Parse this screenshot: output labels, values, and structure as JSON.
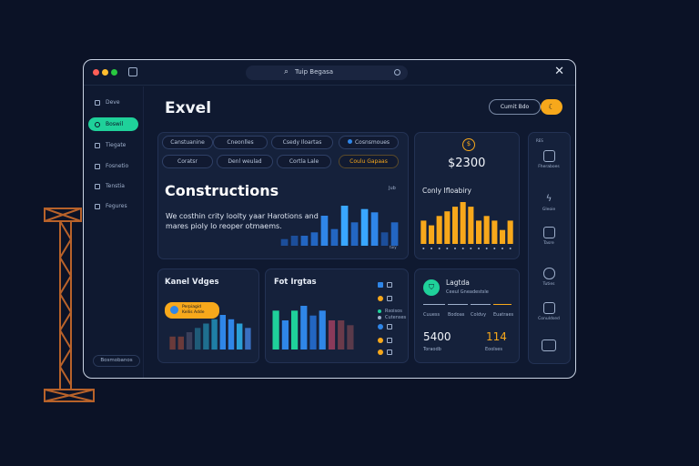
{
  "window": {
    "search_text": "Tuip Begasa"
  },
  "sidebar": {
    "items": [
      {
        "label": "Deve"
      },
      {
        "label": "Boswil"
      },
      {
        "label": "Tiegate"
      },
      {
        "label": "Fosnetio"
      },
      {
        "label": "Tenstia"
      },
      {
        "label": "Fegures"
      }
    ],
    "active_index": 1,
    "bottom_label": "Bosmobanos"
  },
  "header": {
    "brand": "Exvel",
    "create_label": "Cumit Bdo",
    "moon_glyph": "☾"
  },
  "filters": [
    {
      "label": "Canstuanine"
    },
    {
      "label": "Cneonlles"
    },
    {
      "label": "Csedy Iloartas"
    },
    {
      "label": "Cosnsmoues",
      "badge": true
    },
    {
      "label": "Coratsr"
    },
    {
      "label": "Denl weulad"
    },
    {
      "label": "Cortla Lale"
    },
    {
      "label": "Coulu Gapaas",
      "highlight": true
    }
  ],
  "hero": {
    "title": "Constructions",
    "description": "We costhin crity loolty yaar Harotions and mares pioly lo reoper otmaems.",
    "corner_label": "Jub",
    "bar_caption": "tuiy"
  },
  "price_card": {
    "coin_glyph": "$",
    "price": "$2300"
  },
  "cost_card": {
    "title": "Conly Ifloabiry"
  },
  "rail": {
    "top_label": "RES",
    "items": [
      {
        "icon": "document-icon",
        "label": "Fheraboes"
      },
      {
        "icon": "bolt-icon",
        "label": "Gleoie"
      },
      {
        "icon": "cube-icon",
        "label": "Tasre"
      },
      {
        "icon": "hand-icon",
        "label": "Tuties"
      },
      {
        "icon": "chart-icon",
        "label": "Conuldsed"
      },
      {
        "icon": "folder-icon",
        "label": ""
      }
    ]
  },
  "kanal_card": {
    "title": "Kanel Vdges",
    "tooltip_line1": "Perpiagid",
    "tooltip_line2": "Kellis Adde"
  },
  "fot_card": {
    "title": "Fot Irgtas",
    "legend": [
      {
        "label": "Rsoisos",
        "color": "#2f86e8"
      },
      {
        "label": "Cutenses",
        "color": "#f7a81b"
      }
    ]
  },
  "stats_card": {
    "title": "Lagtda",
    "subtitle": "Ceeul Gneadestsle",
    "shield_glyph": "⛉",
    "mini_labels": [
      "Cuuess",
      "Bodoas",
      "Coldvy",
      "Euatraes"
    ],
    "left_value": "5400",
    "left_label": "Toraodb",
    "right_value": "114",
    "right_label": "Eoolses"
  },
  "colors": {
    "accent_green": "#1fd19a",
    "accent_orange": "#f7a81b",
    "accent_blue": "#2f86e8",
    "background": "#0b1226"
  },
  "chart_data": [
    {
      "type": "bar",
      "name": "hero",
      "values": [
        2,
        3,
        3,
        4,
        9,
        5,
        12,
        7,
        11,
        10,
        4,
        7
      ]
    },
    {
      "type": "bar",
      "name": "cost",
      "values": [
        5,
        4,
        6,
        7,
        8,
        9,
        8,
        5,
        6,
        5,
        3,
        5
      ]
    },
    {
      "type": "bar",
      "name": "kanal",
      "values": [
        3,
        3,
        4,
        5,
        6,
        7,
        8,
        7,
        6,
        5
      ]
    },
    {
      "type": "bar",
      "name": "fot",
      "values": [
        8,
        6,
        8,
        9,
        7,
        8,
        6,
        6,
        5
      ]
    }
  ]
}
